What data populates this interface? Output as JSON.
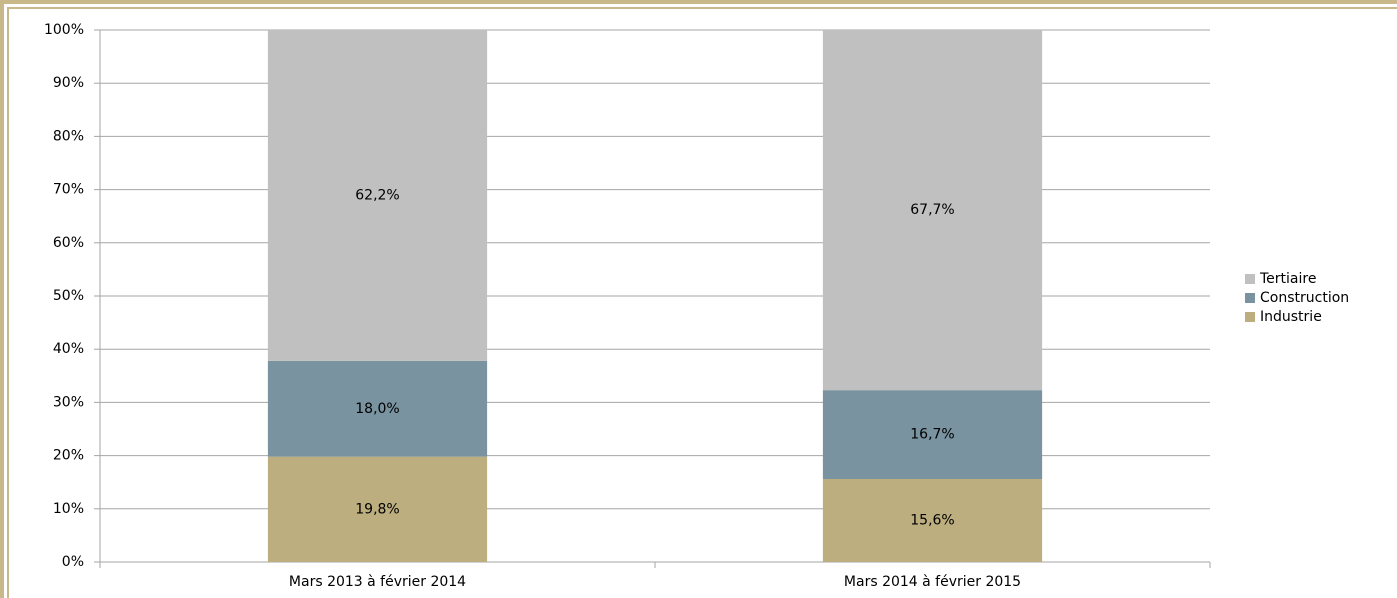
{
  "chart_data": {
    "type": "stacked_bar",
    "categories": [
      "Mars 2013 à février 2014",
      "Mars 2014 à février 2015"
    ],
    "series": [
      {
        "name": "Industrie",
        "color": "#bcae7e",
        "values": [
          19.8,
          15.6
        ],
        "value_labels": [
          "19,8%",
          "15,6%"
        ]
      },
      {
        "name": "Construction",
        "color": "#7a93a0",
        "values": [
          18.0,
          16.7
        ],
        "value_labels": [
          "18,0%",
          "16,7%"
        ]
      },
      {
        "name": "Tertiaire",
        "color": "#c0c0c0",
        "values": [
          62.2,
          67.7
        ],
        "value_labels": [
          "62,2%",
          "67,7%"
        ]
      }
    ],
    "ylim": [
      0,
      100
    ],
    "yticks": [
      {
        "value": 0,
        "label": "0%"
      },
      {
        "value": 10,
        "label": "10%"
      },
      {
        "value": 20,
        "label": "20%"
      },
      {
        "value": 30,
        "label": "30%"
      },
      {
        "value": 40,
        "label": "40%"
      },
      {
        "value": 50,
        "label": "50%"
      },
      {
        "value": 60,
        "label": "60%"
      },
      {
        "value": 70,
        "label": "70%"
      },
      {
        "value": 80,
        "label": "80%"
      },
      {
        "value": 90,
        "label": "90%"
      },
      {
        "value": 100,
        "label": "100%"
      }
    ],
    "grid": true,
    "legend": "right"
  }
}
